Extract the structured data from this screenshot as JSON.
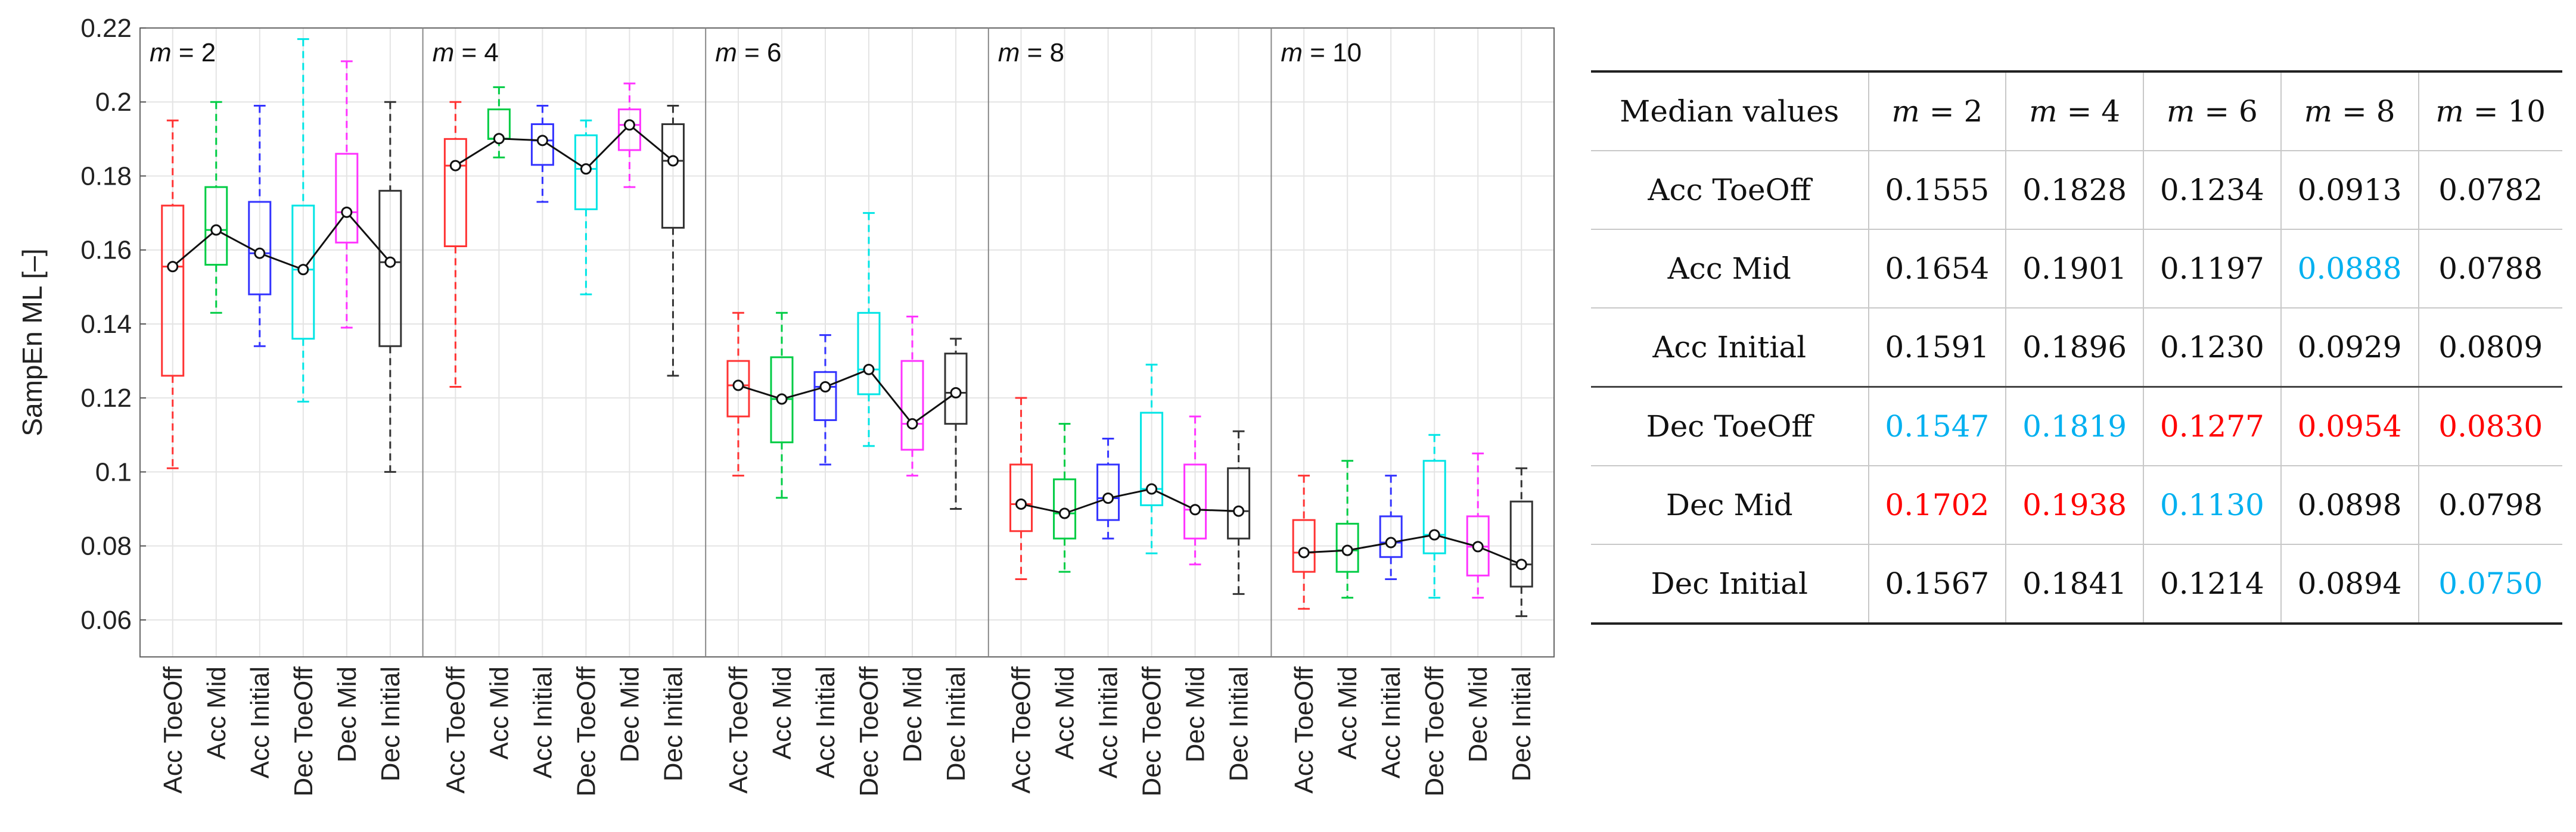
{
  "chart_data": {
    "type": "boxplot",
    "ylabel": "SampEn ML [–]",
    "ylim": [
      0.05,
      0.22
    ],
    "yticks": [
      "0.06",
      "0.08",
      "0.1",
      "0.12",
      "0.14",
      "0.16",
      "0.18",
      "0.2",
      "0.22"
    ],
    "grid": true,
    "categories": [
      "Acc ToeOff",
      "Acc Mid",
      "Acc Initial",
      "Dec ToeOff",
      "Dec Mid",
      "Dec Initial"
    ],
    "colors": [
      "#ff3333",
      "#00cc44",
      "#3333ff",
      "#00e5e5",
      "#ff33ff",
      "#333333"
    ],
    "panels": [
      {
        "label_var": "m",
        "label_rest": " = 2",
        "boxes": [
          {
            "lw": 0.101,
            "q1": 0.126,
            "med": 0.1555,
            "q3": 0.172,
            "uw": 0.195
          },
          {
            "lw": 0.143,
            "q1": 0.156,
            "med": 0.1654,
            "q3": 0.177,
            "uw": 0.2
          },
          {
            "lw": 0.134,
            "q1": 0.148,
            "med": 0.1591,
            "q3": 0.173,
            "uw": 0.199
          },
          {
            "lw": 0.119,
            "q1": 0.136,
            "med": 0.1547,
            "q3": 0.172,
            "uw": 0.217
          },
          {
            "lw": 0.139,
            "q1": 0.162,
            "med": 0.1702,
            "q3": 0.186,
            "uw": 0.211
          },
          {
            "lw": 0.1,
            "q1": 0.134,
            "med": 0.1567,
            "q3": 0.176,
            "uw": 0.2
          }
        ]
      },
      {
        "label_var": "m",
        "label_rest": " = 4",
        "boxes": [
          {
            "lw": 0.123,
            "q1": 0.161,
            "med": 0.1828,
            "q3": 0.19,
            "uw": 0.2
          },
          {
            "lw": 0.185,
            "q1": 0.19,
            "med": 0.1901,
            "q3": 0.198,
            "uw": 0.204
          },
          {
            "lw": 0.173,
            "q1": 0.183,
            "med": 0.1896,
            "q3": 0.194,
            "uw": 0.199
          },
          {
            "lw": 0.148,
            "q1": 0.171,
            "med": 0.1819,
            "q3": 0.191,
            "uw": 0.195
          },
          {
            "lw": 0.177,
            "q1": 0.187,
            "med": 0.1938,
            "q3": 0.198,
            "uw": 0.205
          },
          {
            "lw": 0.126,
            "q1": 0.166,
            "med": 0.1841,
            "q3": 0.194,
            "uw": 0.199
          }
        ]
      },
      {
        "label_var": "m",
        "label_rest": " = 6",
        "boxes": [
          {
            "lw": 0.099,
            "q1": 0.115,
            "med": 0.1234,
            "q3": 0.13,
            "uw": 0.143
          },
          {
            "lw": 0.093,
            "q1": 0.108,
            "med": 0.1197,
            "q3": 0.131,
            "uw": 0.143
          },
          {
            "lw": 0.102,
            "q1": 0.114,
            "med": 0.123,
            "q3": 0.127,
            "uw": 0.137
          },
          {
            "lw": 0.107,
            "q1": 0.121,
            "med": 0.1277,
            "q3": 0.143,
            "uw": 0.17
          },
          {
            "lw": 0.099,
            "q1": 0.106,
            "med": 0.113,
            "q3": 0.13,
            "uw": 0.142
          },
          {
            "lw": 0.09,
            "q1": 0.113,
            "med": 0.1214,
            "q3": 0.132,
            "uw": 0.136
          }
        ]
      },
      {
        "label_var": "m",
        "label_rest": " = 8",
        "boxes": [
          {
            "lw": 0.071,
            "q1": 0.084,
            "med": 0.0913,
            "q3": 0.102,
            "uw": 0.12
          },
          {
            "lw": 0.073,
            "q1": 0.082,
            "med": 0.0888,
            "q3": 0.098,
            "uw": 0.113
          },
          {
            "lw": 0.082,
            "q1": 0.087,
            "med": 0.0929,
            "q3": 0.102,
            "uw": 0.109
          },
          {
            "lw": 0.078,
            "q1": 0.091,
            "med": 0.0954,
            "q3": 0.116,
            "uw": 0.129
          },
          {
            "lw": 0.075,
            "q1": 0.082,
            "med": 0.0898,
            "q3": 0.102,
            "uw": 0.115
          },
          {
            "lw": 0.067,
            "q1": 0.082,
            "med": 0.0894,
            "q3": 0.101,
            "uw": 0.111
          }
        ]
      },
      {
        "label_var": "m",
        "label_rest": " = 10",
        "boxes": [
          {
            "lw": 0.063,
            "q1": 0.073,
            "med": 0.0782,
            "q3": 0.087,
            "uw": 0.099
          },
          {
            "lw": 0.066,
            "q1": 0.073,
            "med": 0.0788,
            "q3": 0.086,
            "uw": 0.103
          },
          {
            "lw": 0.071,
            "q1": 0.077,
            "med": 0.0809,
            "q3": 0.088,
            "uw": 0.099
          },
          {
            "lw": 0.066,
            "q1": 0.078,
            "med": 0.083,
            "q3": 0.103,
            "uw": 0.11
          },
          {
            "lw": 0.066,
            "q1": 0.072,
            "med": 0.0798,
            "q3": 0.088,
            "uw": 0.105
          },
          {
            "lw": 0.061,
            "q1": 0.069,
            "med": 0.075,
            "q3": 0.092,
            "uw": 0.101
          }
        ]
      }
    ]
  },
  "table": {
    "header_first": "Median values",
    "m_var": "m",
    "m_headers": [
      " = 2",
      " = 4",
      " = 6",
      " = 8",
      " = 10"
    ],
    "rows": [
      {
        "label": "Acc ToeOff",
        "values": [
          "0.1555",
          "0.1828",
          "0.1234",
          "0.0913",
          "0.0782"
        ],
        "hl": [
          "",
          "",
          "",
          "",
          ""
        ]
      },
      {
        "label": "Acc Mid",
        "values": [
          "0.1654",
          "0.1901",
          "0.1197",
          "0.0888",
          "0.0788"
        ],
        "hl": [
          "",
          "",
          "",
          "blue",
          ""
        ]
      },
      {
        "label": "Acc Initial",
        "values": [
          "0.1591",
          "0.1896",
          "0.1230",
          "0.0929",
          "0.0809"
        ],
        "hl": [
          "",
          "",
          "",
          "",
          ""
        ]
      },
      {
        "label": "Dec ToeOff",
        "values": [
          "0.1547",
          "0.1819",
          "0.1277",
          "0.0954",
          "0.0830"
        ],
        "hl": [
          "blue",
          "blue",
          "red",
          "red",
          "red"
        ]
      },
      {
        "label": "Dec Mid",
        "values": [
          "0.1702",
          "0.1938",
          "0.1130",
          "0.0898",
          "0.0798"
        ],
        "hl": [
          "red",
          "red",
          "blue",
          "",
          ""
        ]
      },
      {
        "label": "Dec Initial",
        "values": [
          "0.1567",
          "0.1841",
          "0.1214",
          "0.0894",
          "0.0750"
        ],
        "hl": [
          "",
          "",
          "",
          "",
          "blue"
        ]
      }
    ],
    "highlight_colors": {
      "red": "#ff0000",
      "blue": "#00b0f0"
    }
  }
}
